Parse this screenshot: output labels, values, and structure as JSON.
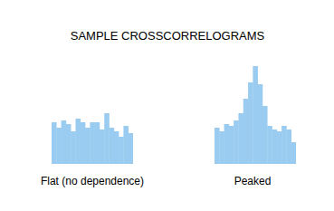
{
  "title": "SAMPLE CROSSCORRELOGRAMS",
  "chart_data": [
    {
      "type": "bar",
      "xlabel": "Flat (no dependence)",
      "categories": [
        null,
        null,
        null,
        null,
        null,
        null,
        null,
        null,
        null,
        null,
        null,
        null,
        null,
        null,
        null,
        null,
        null
      ],
      "values": [
        46,
        40,
        48,
        44,
        36,
        50,
        46,
        40,
        46,
        46,
        38,
        56,
        40,
        36,
        30,
        42,
        34
      ],
      "color": "#99ccf0",
      "ylim": [
        0,
        110
      ],
      "tick_labels": false
    },
    {
      "type": "bar",
      "xlabel": "Peaked",
      "categories": [
        null,
        null,
        null,
        null,
        null,
        null,
        null,
        null,
        null,
        null,
        null,
        null,
        null,
        null,
        null,
        null,
        null
      ],
      "values": [
        40,
        36,
        44,
        42,
        48,
        56,
        72,
        90,
        108,
        88,
        64,
        42,
        38,
        36,
        42,
        38,
        24
      ],
      "color": "#99ccf0",
      "ylim": [
        0,
        110
      ],
      "tick_labels": false
    }
  ]
}
